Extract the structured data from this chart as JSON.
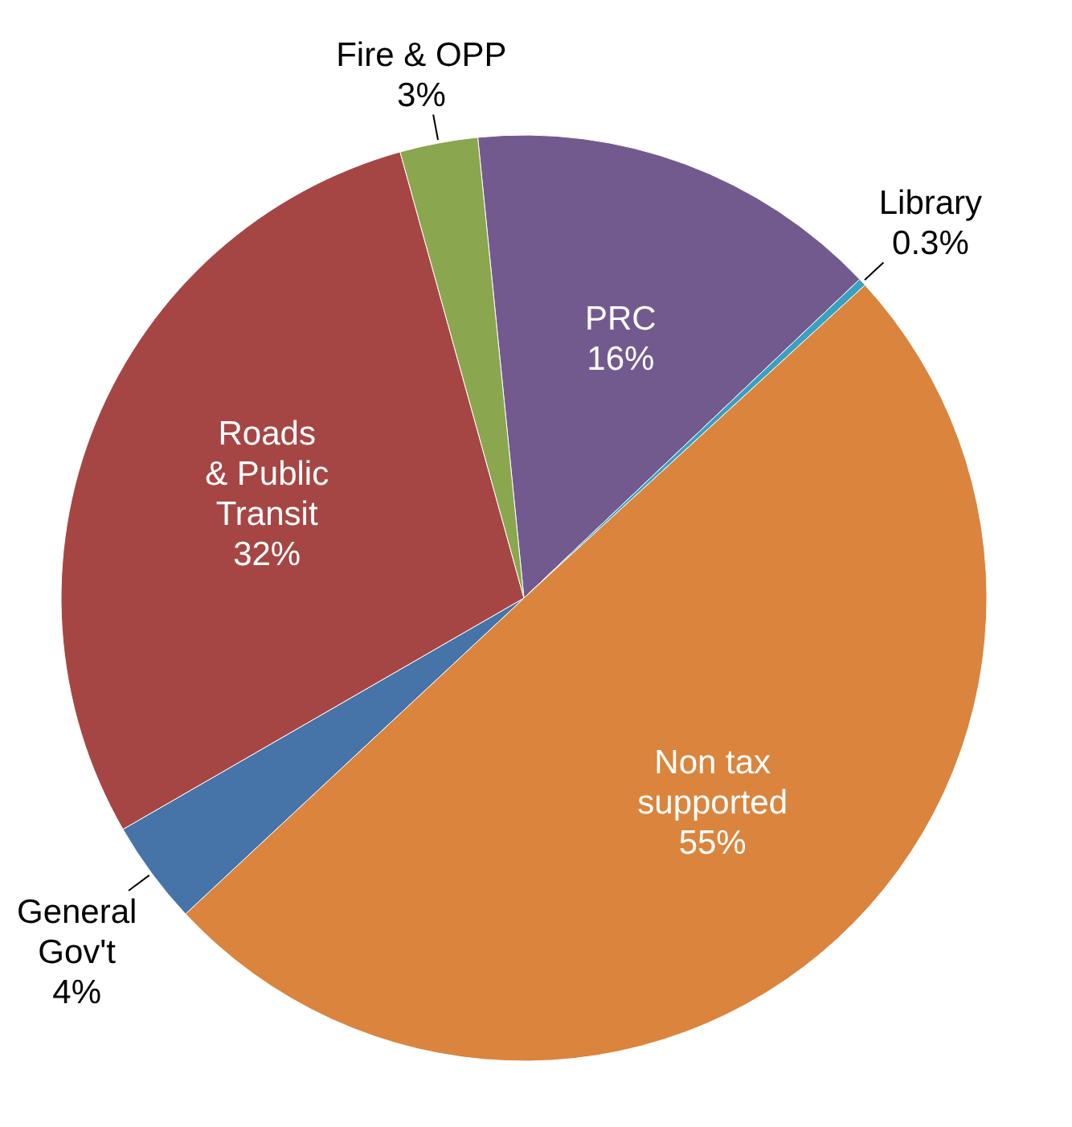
{
  "chart_data": {
    "type": "pie",
    "categories": [
      "PRC",
      "Library",
      "Non tax supported",
      "General Gov't",
      "Roads & Public Transit",
      "Fire & OPP"
    ],
    "values": [
      16,
      0.3,
      55,
      4,
      32,
      3
    ],
    "value_labels": [
      "16%",
      "0.3%",
      "55%",
      "4%",
      "32%",
      "3%"
    ],
    "colors": [
      "#725a8f",
      "#3aa0c0",
      "#da843d",
      "#4673a8",
      "#a64644",
      "#8aa64e"
    ]
  }
}
